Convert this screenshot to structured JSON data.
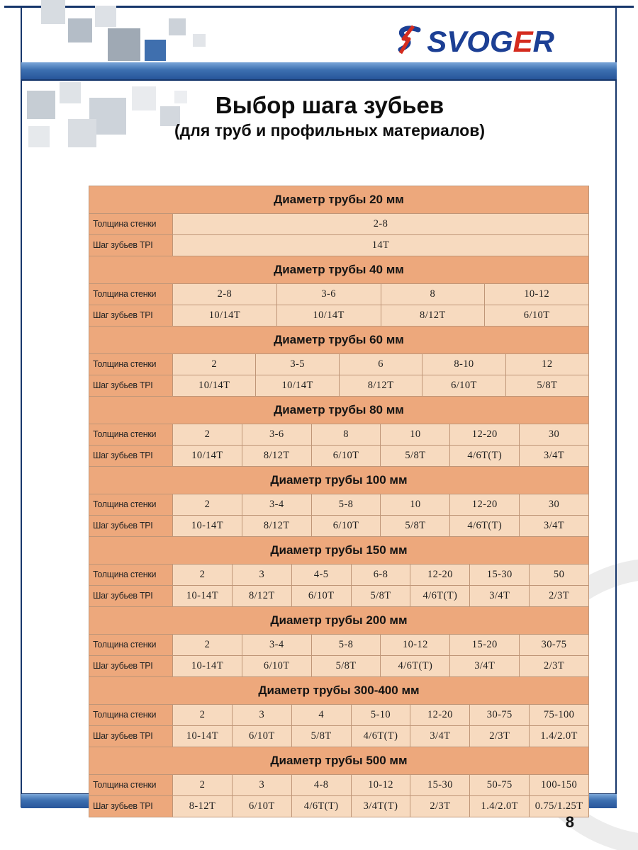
{
  "page": {
    "logo": {
      "pre": "SVOG",
      "accent": "E",
      "post": "R"
    },
    "title_line1": "Выбор шага зубьев",
    "title_line2": "(для труб и профильных материалов)",
    "page_number": "8"
  },
  "colors": {
    "navy_frame": "#16366b",
    "logo_blue": "#1c3f94",
    "logo_red": "#d42b1e",
    "bar_blue": "#3c6fb0",
    "table_header_bg": "#eda87c",
    "table_cell_bg": "#f7dabf",
    "table_border": "#bf9678"
  },
  "table": {
    "row_labels": {
      "thickness": "Толщина стенки",
      "tpi": "Шаг зубьев TPI"
    },
    "sections": [
      {
        "header": "Диаметр трубы 20 мм",
        "thickness": [
          "2-8"
        ],
        "tpi": [
          "14Т"
        ]
      },
      {
        "header": "Диаметр трубы 40 мм",
        "thickness": [
          "2-8",
          "3-6",
          "8",
          "10-12"
        ],
        "tpi": [
          "10/14Т",
          "10/14Т",
          "8/12Т",
          "6/10Т"
        ]
      },
      {
        "header": "Диаметр трубы 60 мм",
        "thickness": [
          "2",
          "3-5",
          "6",
          "8-10",
          "12"
        ],
        "tpi": [
          "10/14Т",
          "10/14Т",
          "8/12Т",
          "6/10Т",
          "5/8Т"
        ]
      },
      {
        "header": "Диаметр трубы 80 мм",
        "thickness": [
          "2",
          "3-6",
          "8",
          "10",
          "12-20",
          "30"
        ],
        "tpi": [
          "10/14Т",
          "8/12Т",
          "6/10Т",
          "5/8Т",
          "4/6Т(Т)",
          "3/4Т"
        ]
      },
      {
        "header": "Диаметр трубы 100 мм",
        "thickness": [
          "2",
          "3-4",
          "5-8",
          "10",
          "12-20",
          "30"
        ],
        "tpi": [
          "10-14Т",
          "8/12Т",
          "6/10Т",
          "5/8Т",
          "4/6Т(Т)",
          "3/4Т"
        ]
      },
      {
        "header": "Диаметр трубы 150 мм",
        "thickness": [
          "2",
          "3",
          "4-5",
          "6-8",
          "12-20",
          "15-30",
          "50"
        ],
        "tpi": [
          "10-14Т",
          "8/12Т",
          "6/10Т",
          "5/8Т",
          "4/6Т(Т)",
          "3/4Т",
          "2/3Т"
        ]
      },
      {
        "header": "Диаметр трубы 200 мм",
        "thickness": [
          "2",
          "3-4",
          "5-8",
          "10-12",
          "15-20",
          "30-75"
        ],
        "tpi": [
          "10-14Т",
          "6/10Т",
          "5/8Т",
          "4/6Т(Т)",
          "3/4Т",
          "2/3Т"
        ]
      },
      {
        "header": "Диаметр трубы 300-400 мм",
        "thickness": [
          "2",
          "3",
          "4",
          "5-10",
          "12-20",
          "30-75",
          "75-100"
        ],
        "tpi": [
          "10-14Т",
          "6/10Т",
          "5/8Т",
          "4/6Т(Т)",
          "3/4Т",
          "2/3Т",
          "1.4/2.0Т"
        ]
      },
      {
        "header": "Диаметр трубы 500 мм",
        "thickness": [
          "2",
          "3",
          "4-8",
          "10-12",
          "15-30",
          "50-75",
          "100-150"
        ],
        "tpi": [
          "8-12Т",
          "6/10Т",
          "4/6Т(Т)",
          "3/4Т(Т)",
          "2/3Т",
          "1.4/2.0Т",
          "0.75/1.25Т"
        ]
      }
    ]
  }
}
